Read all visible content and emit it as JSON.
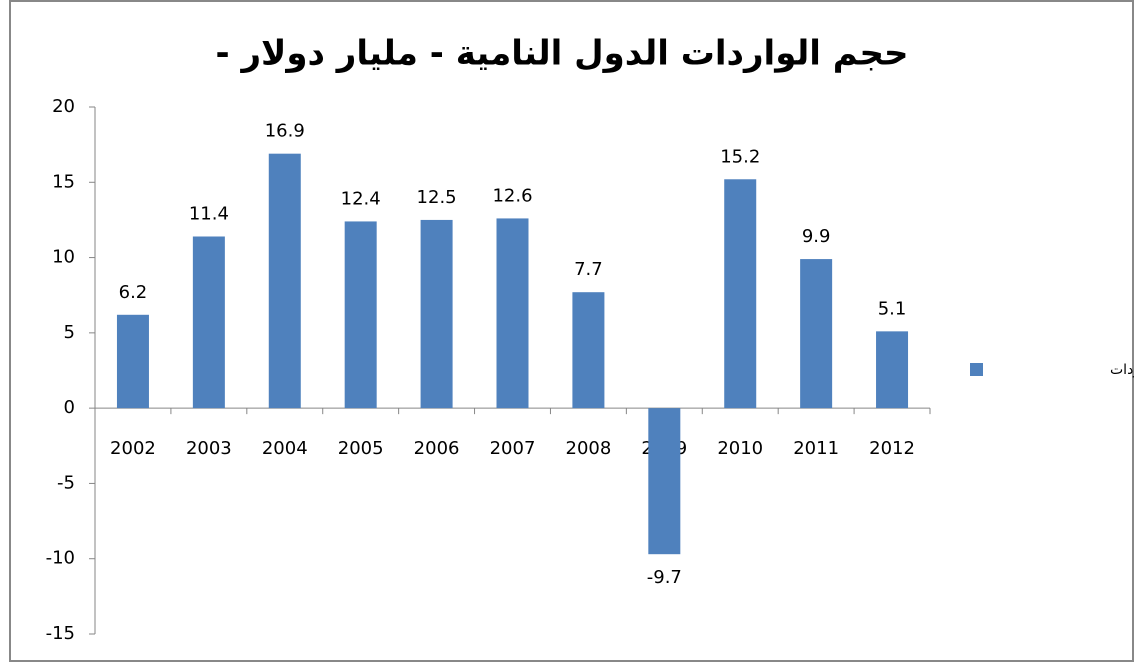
{
  "chart_data": {
    "type": "bar",
    "title": "حجم الواردات الدول النامية - مليار دولار -",
    "categories": [
      "2002",
      "2003",
      "2004",
      "2005",
      "2006",
      "2007",
      "2008",
      "2009",
      "2010",
      "2011",
      "2012"
    ],
    "series": [
      {
        "name": "حجم الواردات",
        "color": "#4f81bd",
        "values": [
          6.2,
          11.4,
          16.9,
          12.4,
          12.5,
          12.6,
          7.7,
          -9.7,
          15.2,
          9.9,
          5.1
        ]
      }
    ],
    "ylim": [
      -15,
      20
    ],
    "yticks": [
      -15,
      -10,
      -5,
      0,
      5,
      10,
      15,
      20
    ],
    "grid": false,
    "legend": "right"
  }
}
